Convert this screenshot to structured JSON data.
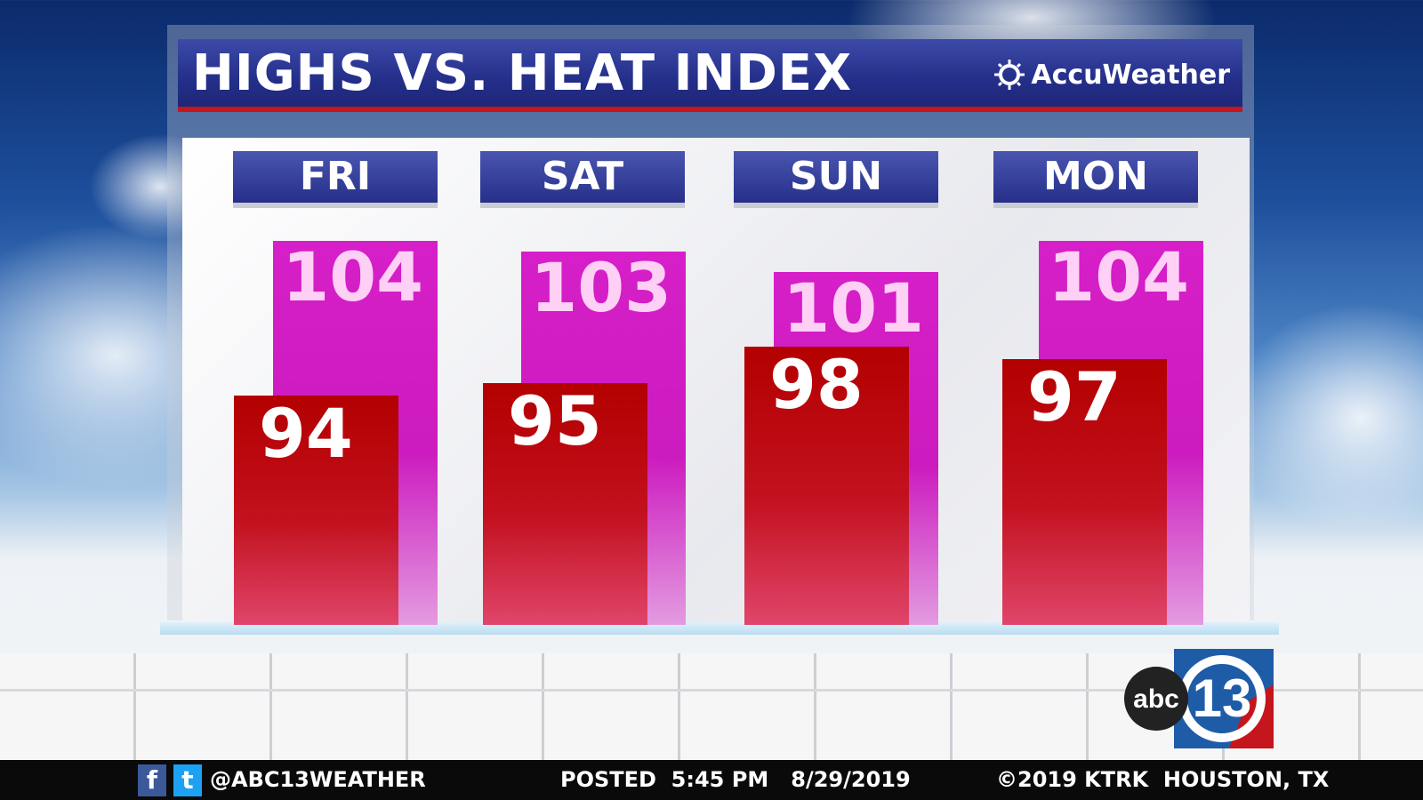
{
  "header": {
    "title": "HIGHS VS. HEAT INDEX",
    "brand": "AccuWeather",
    "brand_icon": "sun-icon"
  },
  "chart_data": {
    "type": "bar",
    "title": "HIGHS VS. HEAT INDEX",
    "categories": [
      "FRI",
      "SAT",
      "SUN",
      "MON"
    ],
    "series": [
      {
        "key": "heat_index",
        "values": [
          104,
          103,
          101,
          104
        ],
        "color": "#cc1bbf"
      },
      {
        "key": "highs",
        "values": [
          94,
          95,
          98,
          97
        ],
        "color": "#b30000"
      }
    ],
    "grid": false,
    "legend": "none"
  },
  "footer": {
    "handle": "@ABC13WEATHER",
    "posted": "POSTED  5:45 PM   8/29/2019",
    "copyright": "©2019 KTRK  HOUSTON, TX",
    "facebook": "f",
    "twitter": "t"
  },
  "logo": {
    "text": "abc13"
  }
}
